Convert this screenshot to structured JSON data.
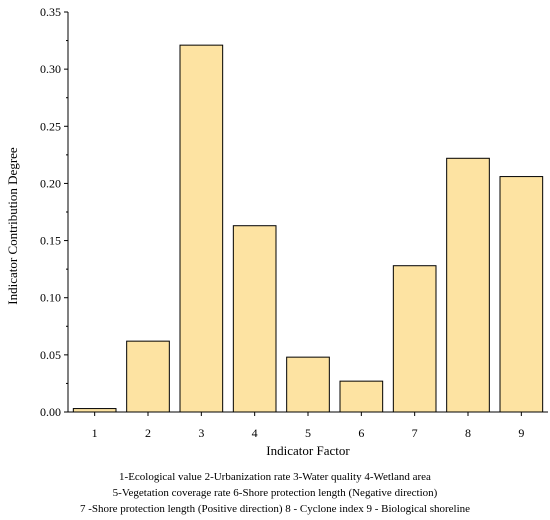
{
  "chart_data": {
    "type": "bar",
    "categories": [
      "1",
      "2",
      "3",
      "4",
      "5",
      "6",
      "7",
      "8",
      "9"
    ],
    "values": [
      0.003,
      0.062,
      0.321,
      0.163,
      0.048,
      0.027,
      0.128,
      0.222,
      0.206
    ],
    "xlabel": "Indicator Factor",
    "ylabel": "Indicator Contribution Degree",
    "ylim": [
      0,
      0.35
    ],
    "yticks": [
      "0.00",
      "0.05",
      "0.10",
      "0.15",
      "0.20",
      "0.25",
      "0.30",
      "0.35"
    ],
    "bar_color": "#fde3a2",
    "bar_edge_color": "#000000",
    "grid": false,
    "legend": "none"
  },
  "captions": {
    "line1": "1-Ecological value  2-Urbanization rate  3-Water quality  4-Wetland area",
    "line2": "5-Vegetation coverage rate   6-Shore protection length (Negative direction)",
    "line3": "7 -Shore protection length (Positive direction)     8 - Cyclone index     9 - Biological shoreline"
  }
}
